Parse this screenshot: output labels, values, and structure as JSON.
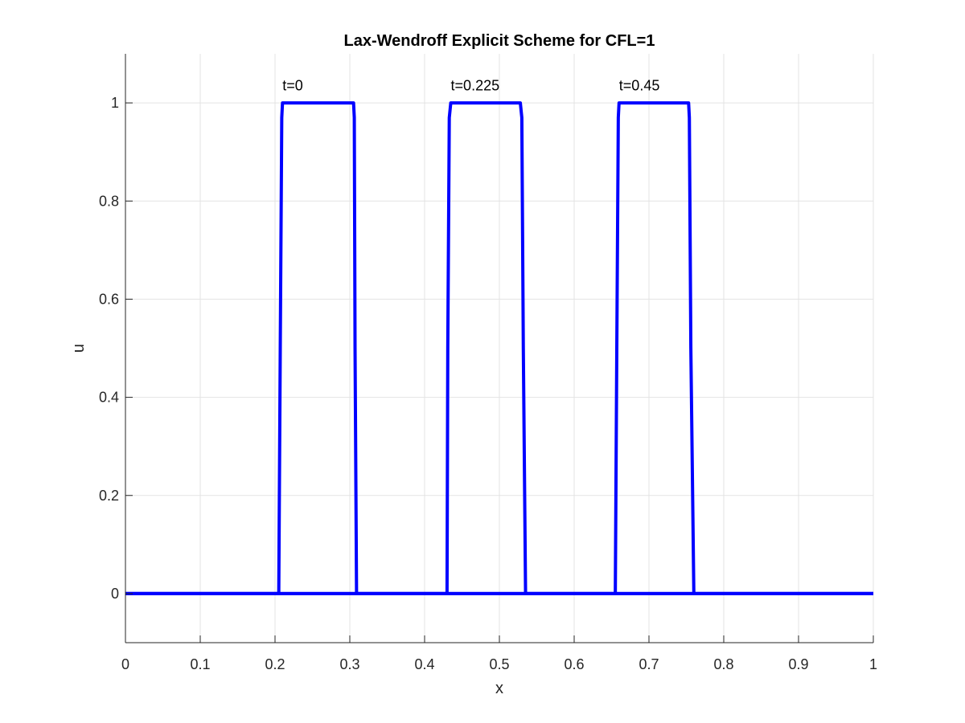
{
  "chart_data": {
    "type": "line",
    "title": "Lax-Wendroff Explicit Scheme for CFL=1",
    "xlabel": "x",
    "ylabel": "u",
    "xlim": [
      0,
      1
    ],
    "ylim": [
      -0.1,
      1.1
    ],
    "xticks": [
      0,
      0.1,
      0.2,
      0.3,
      0.4,
      0.5,
      0.6,
      0.7,
      0.8,
      0.9,
      1
    ],
    "xtick_labels": [
      "0",
      "0.1",
      "0.2",
      "0.3",
      "0.4",
      "0.5",
      "0.6",
      "0.7",
      "0.8",
      "0.9",
      "1"
    ],
    "yticks": [
      0,
      0.2,
      0.4,
      0.6,
      0.8,
      1
    ],
    "ytick_labels": [
      "0",
      "0.2",
      "0.4",
      "0.6",
      "0.8",
      "1"
    ],
    "grid": true,
    "line_color": "#0000ff",
    "series": [
      {
        "x": [
          0,
          0.205,
          0.207,
          0.209,
          0.21,
          0.305,
          0.306,
          0.307,
          0.309,
          1
        ],
        "y": [
          0,
          0,
          0.5,
          0.97,
          1,
          1,
          0.97,
          0.5,
          0,
          0
        ]
      },
      {
        "x": [
          0,
          0.43,
          0.431,
          0.433,
          0.435,
          0.528,
          0.53,
          0.532,
          0.535,
          1
        ],
        "y": [
          0,
          0,
          0.5,
          0.97,
          1,
          1,
          0.97,
          0.5,
          0,
          0
        ]
      },
      {
        "x": [
          0,
          0.655,
          0.657,
          0.659,
          0.66,
          0.753,
          0.754,
          0.756,
          0.76,
          1
        ],
        "y": [
          0,
          0,
          0.5,
          0.97,
          1,
          1,
          0.97,
          0.5,
          0,
          0
        ]
      }
    ],
    "annotations": [
      {
        "text": "t=0",
        "x": 0.21,
        "y": 1.035
      },
      {
        "text": "t=0.225",
        "x": 0.435,
        "y": 1.035
      },
      {
        "text": "t=0.45",
        "x": 0.66,
        "y": 1.035
      }
    ]
  }
}
